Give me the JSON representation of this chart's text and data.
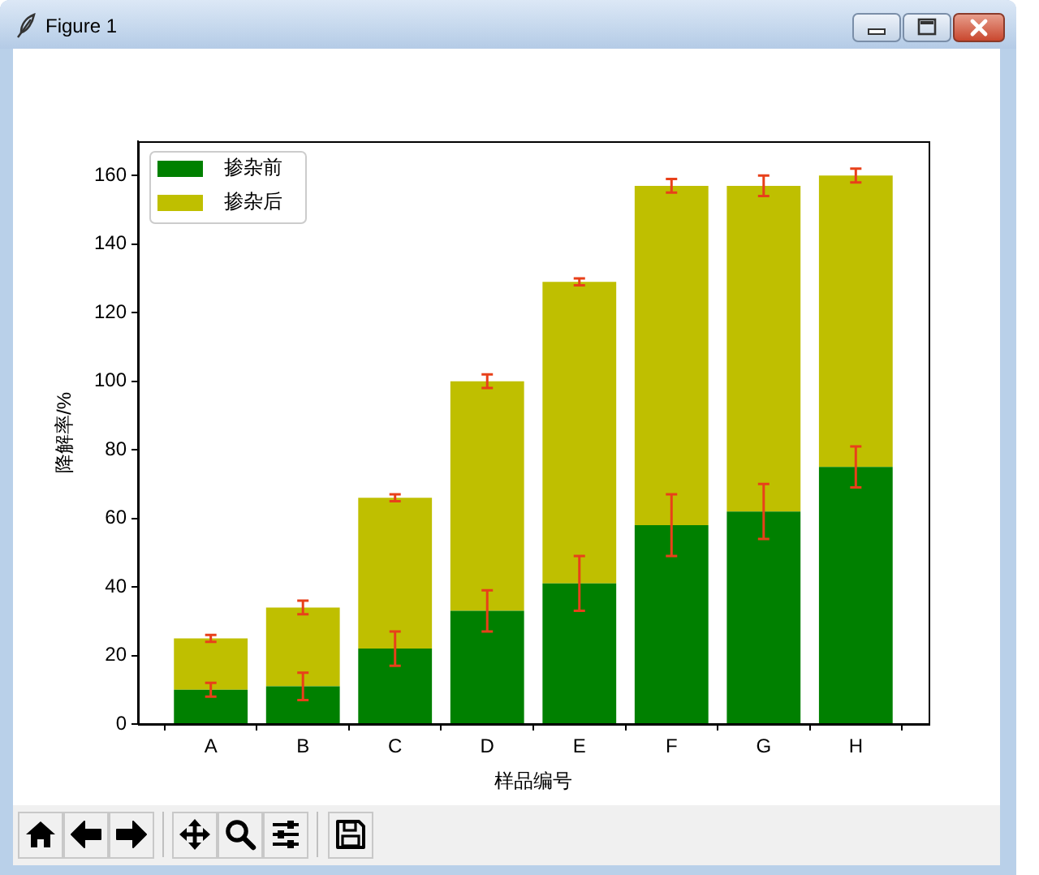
{
  "chart_data": {
    "type": "bar",
    "stacked": true,
    "xlabel": "样品编号",
    "ylabel": "降解率/%",
    "annotations": [
      "Figure 1"
    ],
    "categories": [
      "A",
      "B",
      "C",
      "D",
      "E",
      "F",
      "G",
      "H"
    ],
    "series": [
      {
        "name": "掺杂前",
        "color": "#008000",
        "values": [
          10,
          11,
          22,
          33,
          41,
          58,
          62,
          75
        ],
        "errors": [
          2,
          4,
          5,
          6,
          8,
          9,
          8,
          6
        ]
      },
      {
        "name": "掺杂后",
        "color": "#bfbf00",
        "values": [
          15,
          23,
          44,
          67,
          88,
          99,
          95,
          85
        ],
        "errors": [
          1,
          2,
          1,
          2,
          1,
          2,
          3,
          2
        ]
      }
    ],
    "ylim": [
      0,
      170
    ],
    "yticks": [
      0,
      20,
      40,
      60,
      80,
      100,
      120,
      140,
      160
    ],
    "legend": "top left"
  }
}
